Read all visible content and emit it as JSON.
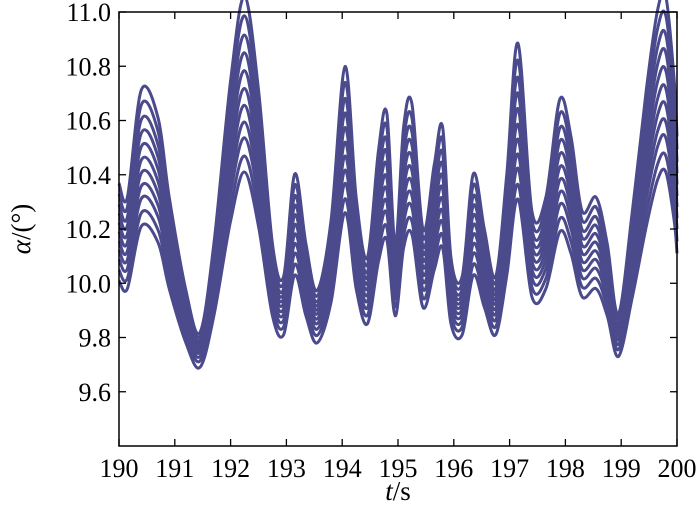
{
  "chart_data": {
    "type": "line",
    "title": "",
    "xlabel": {
      "var": "t",
      "unit": "/s"
    },
    "ylabel": {
      "var": "α",
      "unit": "/(°)"
    },
    "xlim": [
      190,
      200
    ],
    "ylim": [
      9.4,
      11.0
    ],
    "xticks": [
      190,
      191,
      192,
      193,
      194,
      195,
      196,
      197,
      198,
      199,
      200
    ],
    "yticks": [
      "9.6",
      "9.8",
      "10.0",
      "10.2",
      "10.4",
      "10.6",
      "10.8",
      "11.0"
    ],
    "grid": false,
    "legend": "none",
    "line_color": "#4b4a8c",
    "series_offsets_from_mean": [
      -0.17,
      -0.13,
      -0.09,
      -0.055,
      -0.02,
      0.015,
      0.05,
      0.085,
      0.12,
      0.16,
      0.2
    ],
    "amplitude_factors": [
      1.0,
      1.05,
      1.12,
      1.18,
      1.25,
      1.32,
      1.4,
      1.48,
      1.56,
      1.64,
      1.72
    ],
    "mean_curve": {
      "x": [
        190.0,
        190.15,
        190.4,
        190.7,
        190.9,
        191.2,
        191.45,
        191.7,
        192.0,
        192.25,
        192.5,
        192.75,
        192.95,
        193.15,
        193.35,
        193.55,
        193.8,
        194.05,
        194.25,
        194.45,
        194.65,
        194.8,
        194.95,
        195.1,
        195.25,
        195.45,
        195.65,
        195.8,
        195.95,
        196.15,
        196.35,
        196.55,
        196.75,
        196.95,
        197.15,
        197.4,
        197.65,
        197.9,
        198.1,
        198.3,
        198.55,
        198.75,
        198.95,
        199.2,
        199.45,
        199.65,
        199.8,
        199.95,
        200.0
      ],
      "y": [
        10.18,
        10.15,
        10.38,
        10.32,
        10.15,
        9.95,
        9.86,
        10.05,
        10.4,
        10.58,
        10.38,
        10.05,
        9.98,
        10.2,
        10.05,
        9.95,
        10.1,
        10.43,
        10.15,
        10.02,
        10.25,
        10.33,
        10.05,
        10.3,
        10.35,
        10.08,
        10.22,
        10.3,
        10.02,
        9.98,
        10.2,
        10.08,
        9.98,
        10.2,
        10.48,
        10.12,
        10.15,
        10.36,
        10.28,
        10.12,
        10.15,
        10.05,
        9.9,
        10.12,
        10.38,
        10.55,
        10.58,
        10.4,
        10.28
      ]
    }
  }
}
